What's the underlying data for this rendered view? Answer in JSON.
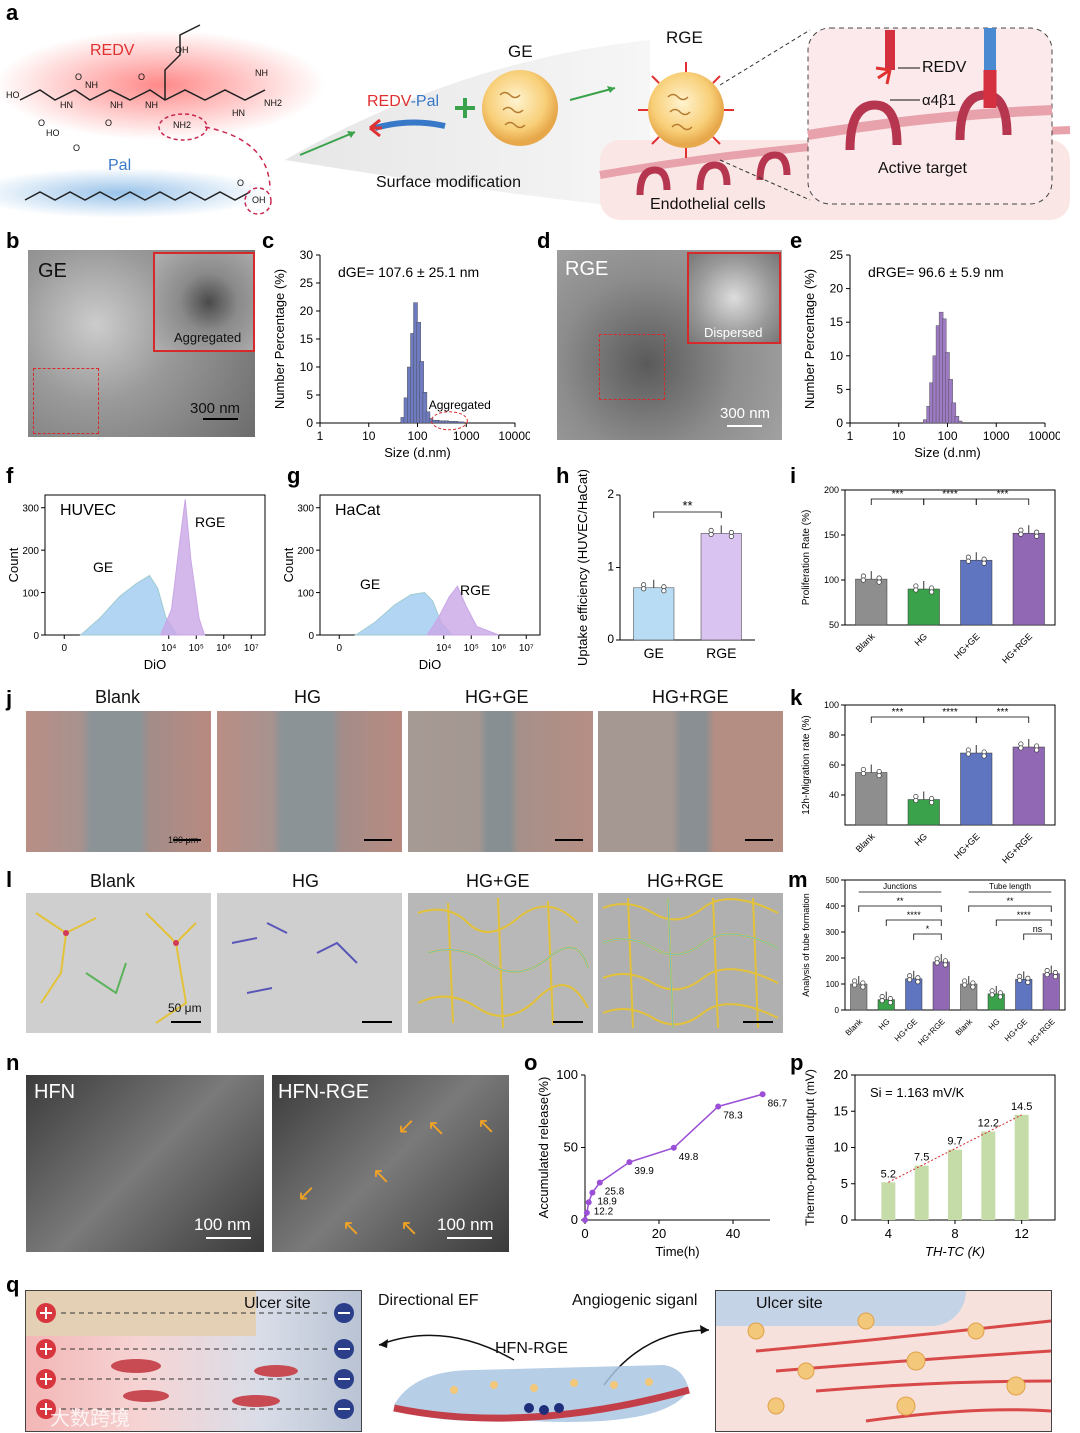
{
  "panels": {
    "a": {
      "label": "a",
      "redev": "REDV",
      "pal": "Pal",
      "ge": "GE",
      "rge": "RGE",
      "redv_pal_red": "REDV",
      "redv_pal_blue": "-Pal",
      "surface_mod": "Surface modification",
      "endothelial": "Endothelial cells",
      "redv_label": "REDV",
      "alpha": "α4β1",
      "active_target": "Active target",
      "chem_labels": [
        "HO",
        "O",
        "OH",
        "HN",
        "NH",
        "NH",
        "NH",
        "O",
        "O",
        "O",
        "O",
        "HO",
        "NH2",
        "NH2",
        "NH",
        "HN",
        "O",
        "OH"
      ]
    },
    "b": {
      "label": "b",
      "title": "GE",
      "inset": "Aggregated",
      "scale": "300 nm"
    },
    "c": {
      "label": "c",
      "annot": "dGE= 107.6 ± 25.1 nm",
      "aggregated": "Aggregated"
    },
    "d": {
      "label": "d",
      "title": "RGE",
      "inset": "Dispersed",
      "scale": "300 nm"
    },
    "e": {
      "label": "e",
      "annot": "dRGE= 96.6 ± 5.9 nm"
    },
    "f": {
      "label": "f",
      "title": "HUVEC",
      "ge": "GE",
      "rge": "RGE"
    },
    "g": {
      "label": "g",
      "title": "HaCat",
      "ge": "GE",
      "rge": "RGE"
    },
    "h": {
      "label": "h",
      "sig": "**"
    },
    "i": {
      "label": "i",
      "sig": [
        "***",
        "****",
        "***"
      ]
    },
    "j": {
      "label": "j",
      "titles": [
        "Blank",
        "HG",
        "HG+GE",
        "HG+RGE"
      ],
      "scale": "100 μm"
    },
    "k": {
      "label": "k",
      "sig": [
        "***",
        "****",
        "***"
      ]
    },
    "l": {
      "label": "l",
      "titles": [
        "Blank",
        "HG",
        "HG+GE",
        "HG+RGE"
      ],
      "scale": "50 μm"
    },
    "m": {
      "label": "m",
      "junctions": "Junctions",
      "tube_length": "Tube length",
      "sig": [
        "**",
        "****",
        "*",
        "**",
        "****",
        "ns"
      ]
    },
    "n": {
      "label": "n",
      "hfn": "HFN",
      "hfn_rge": "HFN-RGE",
      "scale1": "100 nm",
      "scale2": "100 nm"
    },
    "o": {
      "label": "o"
    },
    "p": {
      "label": "p",
      "annot": "Si = 1.163 mV/K"
    },
    "q": {
      "label": "q",
      "ulcer1": "Ulcer site",
      "directional": "Directional EF",
      "angiogenic": "Angiogenic siganl",
      "hfn_rge": "HFN-RGE",
      "ulcer2": "Ulcer site",
      "watermark": "大数跨境"
    }
  },
  "chart_data": [
    {
      "id": "c",
      "type": "bar",
      "xlabel": "Size (d.nm)",
      "ylabel": "Number Percentage (%)",
      "xscale": "log",
      "xlim": [
        1,
        10000
      ],
      "ylim": [
        0,
        30
      ],
      "xticks": [
        "1",
        "10",
        "100",
        "1000",
        "10000"
      ],
      "yticks": [
        "0",
        "5",
        "10",
        "15",
        "20",
        "25",
        "30"
      ],
      "x": [
        50,
        58,
        68,
        79,
        91,
        106,
        122,
        142,
        164,
        190,
        220,
        255,
        295,
        342,
        396,
        459,
        531,
        615,
        712,
        825
      ],
      "values": [
        1.0,
        4.5,
        10.0,
        16.0,
        21.5,
        18.0,
        11.0,
        5.5,
        2.0,
        0.8,
        0.5,
        0.5,
        0.4,
        0.4,
        0.4,
        0.3,
        0.3,
        0.3,
        0.2,
        0.2
      ],
      "color": "#6f7bbf"
    },
    {
      "id": "e",
      "type": "bar",
      "xlabel": "Size (d.nm)",
      "ylabel": "Number Percentage (%)",
      "xscale": "log",
      "xlim": [
        1,
        10000
      ],
      "ylim": [
        0,
        25
      ],
      "xticks": [
        "1",
        "10",
        "100",
        "1000",
        "10000"
      ],
      "yticks": [
        "0",
        "5",
        "10",
        "15",
        "20",
        "25"
      ],
      "x": [
        35,
        41,
        47,
        55,
        64,
        74,
        86,
        100,
        116,
        135,
        156,
        181
      ],
      "values": [
        0.5,
        2.5,
        6.0,
        10.0,
        14.5,
        16.5,
        15.5,
        10.5,
        6.5,
        3.0,
        1.0,
        0.3
      ],
      "color": "#9c7bc2"
    },
    {
      "id": "f",
      "type": "area",
      "xlabel": "DiO",
      "ylabel": "Count",
      "ylim": [
        0,
        330
      ],
      "yticks": [
        "0",
        "100",
        "200",
        "300"
      ],
      "xticks": [
        "0",
        "10⁴",
        "10⁵",
        "10⁶",
        "10⁷"
      ],
      "series": [
        {
          "name": "GE",
          "x": [
            0.8,
            1.5,
            2.2,
            2.8,
            3.3,
            3.6,
            3.9,
            4.3
          ],
          "values": [
            0,
            40,
            90,
            120,
            140,
            110,
            40,
            0
          ],
          "color": "#9fcbf0"
        },
        {
          "name": "RGE",
          "x": [
            3.7,
            4.1,
            4.4,
            4.6,
            4.8,
            5.1,
            5.3
          ],
          "values": [
            0,
            60,
            220,
            320,
            180,
            40,
            0
          ],
          "color": "#c9a6e6"
        }
      ]
    },
    {
      "id": "g",
      "type": "area",
      "xlabel": "DiO",
      "ylabel": "Count",
      "ylim": [
        0,
        330
      ],
      "yticks": [
        "0",
        "100",
        "200",
        "300"
      ],
      "xticks": [
        "0",
        "10⁴",
        "10⁵",
        "10⁶",
        "10⁷"
      ],
      "series": [
        {
          "name": "GE",
          "x": [
            0.8,
            1.5,
            2.2,
            2.8,
            3.3,
            3.6,
            3.9,
            4.3
          ],
          "values": [
            0,
            30,
            70,
            95,
            100,
            80,
            30,
            0
          ],
          "color": "#9fcbf0"
        },
        {
          "name": "RGE",
          "x": [
            3.4,
            3.8,
            4.2,
            4.5,
            4.8,
            5.2,
            6.0
          ],
          "values": [
            0,
            40,
            90,
            115,
            70,
            20,
            0
          ],
          "color": "#c9a6e6"
        }
      ]
    },
    {
      "id": "h",
      "type": "bar",
      "ylabel": "Uptake efficiency (HUVEC/HaCat)",
      "categories": [
        "GE",
        "RGE"
      ],
      "values": [
        0.72,
        1.47
      ],
      "ylim": [
        0,
        2
      ],
      "yticks": [
        "0",
        "1",
        "2"
      ],
      "colors": [
        "#b9dcf5",
        "#d9c3f0"
      ]
    },
    {
      "id": "i",
      "type": "bar",
      "ylabel": "Proliferation Rate (%)",
      "categories": [
        "Blank",
        "HG",
        "HG+GE",
        "HG+RGE"
      ],
      "values": [
        101,
        90,
        122,
        152
      ],
      "ylim": [
        50,
        200
      ],
      "yticks": [
        "50",
        "100",
        "150",
        "200"
      ],
      "colors": [
        "#8e8e8e",
        "#3aa24a",
        "#5f75c0",
        "#9068b3"
      ]
    },
    {
      "id": "k",
      "type": "bar",
      "ylabel": "12h-Migration rate (%)",
      "categories": [
        "Blank",
        "HG",
        "HG+GE",
        "HG+RGE"
      ],
      "values": [
        55,
        37,
        68,
        72
      ],
      "ylim": [
        20,
        100
      ],
      "yticks": [
        "40",
        "60",
        "80",
        "100"
      ],
      "colors": [
        "#8e8e8e",
        "#3aa24a",
        "#5f75c0",
        "#9068b3"
      ]
    },
    {
      "id": "m",
      "type": "bar",
      "ylabel": "Analysis of tube formation",
      "categories": [
        "Blank",
        "HG",
        "HG+GE",
        "HG+RGE",
        "Blank",
        "HG",
        "HG+GE",
        "HG+RGE"
      ],
      "values": [
        100,
        40,
        120,
        185,
        100,
        62,
        118,
        140
      ],
      "ylim": [
        0,
        500
      ],
      "yticks": [
        "0",
        "100",
        "200",
        "300",
        "400",
        "500"
      ],
      "colors": [
        "#8e8e8e",
        "#3aa24a",
        "#5f75c0",
        "#9068b3",
        "#8e8e8e",
        "#3aa24a",
        "#5f75c0",
        "#9068b3"
      ]
    },
    {
      "id": "o",
      "type": "line",
      "xlabel": "Time(h)",
      "ylabel": "Accumulated release(%)",
      "x": [
        0,
        0.5,
        1,
        2,
        4,
        12,
        24,
        36,
        48
      ],
      "values": [
        0,
        5,
        12.2,
        18.9,
        25.8,
        39.9,
        49.8,
        78.3,
        86.7
      ],
      "labels": [
        "",
        "",
        "12.2",
        "18.9",
        "25.8",
        "39.9",
        "49.8",
        "78.3",
        "86.7"
      ],
      "xlim": [
        0,
        50
      ],
      "ylim": [
        0,
        100
      ],
      "xticks": [
        "0",
        "20",
        "40"
      ],
      "yticks": [
        "0",
        "50",
        "100"
      ],
      "color": "#9a4fd6"
    },
    {
      "id": "p",
      "type": "bar",
      "xlabel": "TH-TC (K)",
      "ylabel": "Thermo-potential output (mV)",
      "x": [
        4,
        6,
        8,
        10,
        12
      ],
      "values": [
        5.2,
        7.5,
        9.7,
        12.2,
        14.5
      ],
      "labels": [
        "5.2",
        "7.5",
        "9.7",
        "12.2",
        "14.5"
      ],
      "xlim": [
        2,
        14
      ],
      "ylim": [
        0,
        20
      ],
      "xticks": [
        "4",
        "8",
        "12"
      ],
      "yticks": [
        "0",
        "5",
        "10",
        "15",
        "20"
      ],
      "color": "#c6dca8"
    }
  ]
}
